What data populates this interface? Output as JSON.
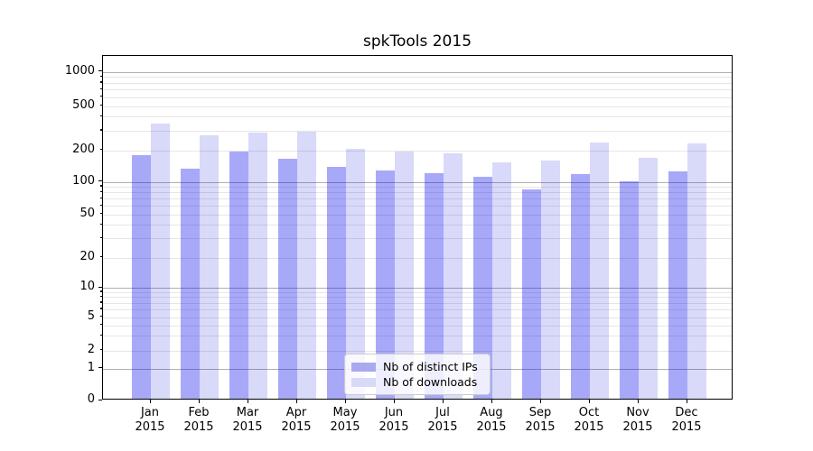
{
  "title": "spkTools 2015",
  "legend": {
    "items": [
      {
        "label": "Nb of distinct IPs",
        "color": "#a9a9ef"
      },
      {
        "label": "Nb of downloads",
        "color": "#d8d8f7"
      }
    ]
  },
  "chart_data": {
    "type": "bar",
    "title": "spkTools 2015",
    "categories": [
      "Jan",
      "Feb",
      "Mar",
      "Apr",
      "May",
      "Jun",
      "Jul",
      "Aug",
      "Sep",
      "Oct",
      "Nov",
      "Dec"
    ],
    "category_year": "2015",
    "series": [
      {
        "name": "Nb of distinct IPs",
        "swatch_color": "#a9a9ef",
        "bar_color": "rgba(0,0,238,0.34)",
        "values": [
          172,
          127,
          186,
          158,
          132,
          124,
          116,
          108,
          82,
          113,
          97,
          120
        ]
      },
      {
        "name": "Nb of downloads",
        "swatch_color": "#d8d8f7",
        "bar_color": "rgba(0,0,215,0.15)",
        "values": [
          332,
          262,
          278,
          284,
          198,
          188,
          178,
          148,
          154,
          228,
          164,
          222
        ]
      }
    ],
    "xlabel": "",
    "ylabel": "",
    "y_scale": "symlog",
    "y_ticks_labeled": [
      0,
      1,
      2,
      5,
      10,
      20,
      50,
      100,
      200,
      500,
      1000
    ],
    "y_ticks_major": [
      1,
      10,
      100,
      1000
    ],
    "ylim": [
      0,
      1400
    ],
    "grid": "both",
    "legend_position": "lower center"
  }
}
